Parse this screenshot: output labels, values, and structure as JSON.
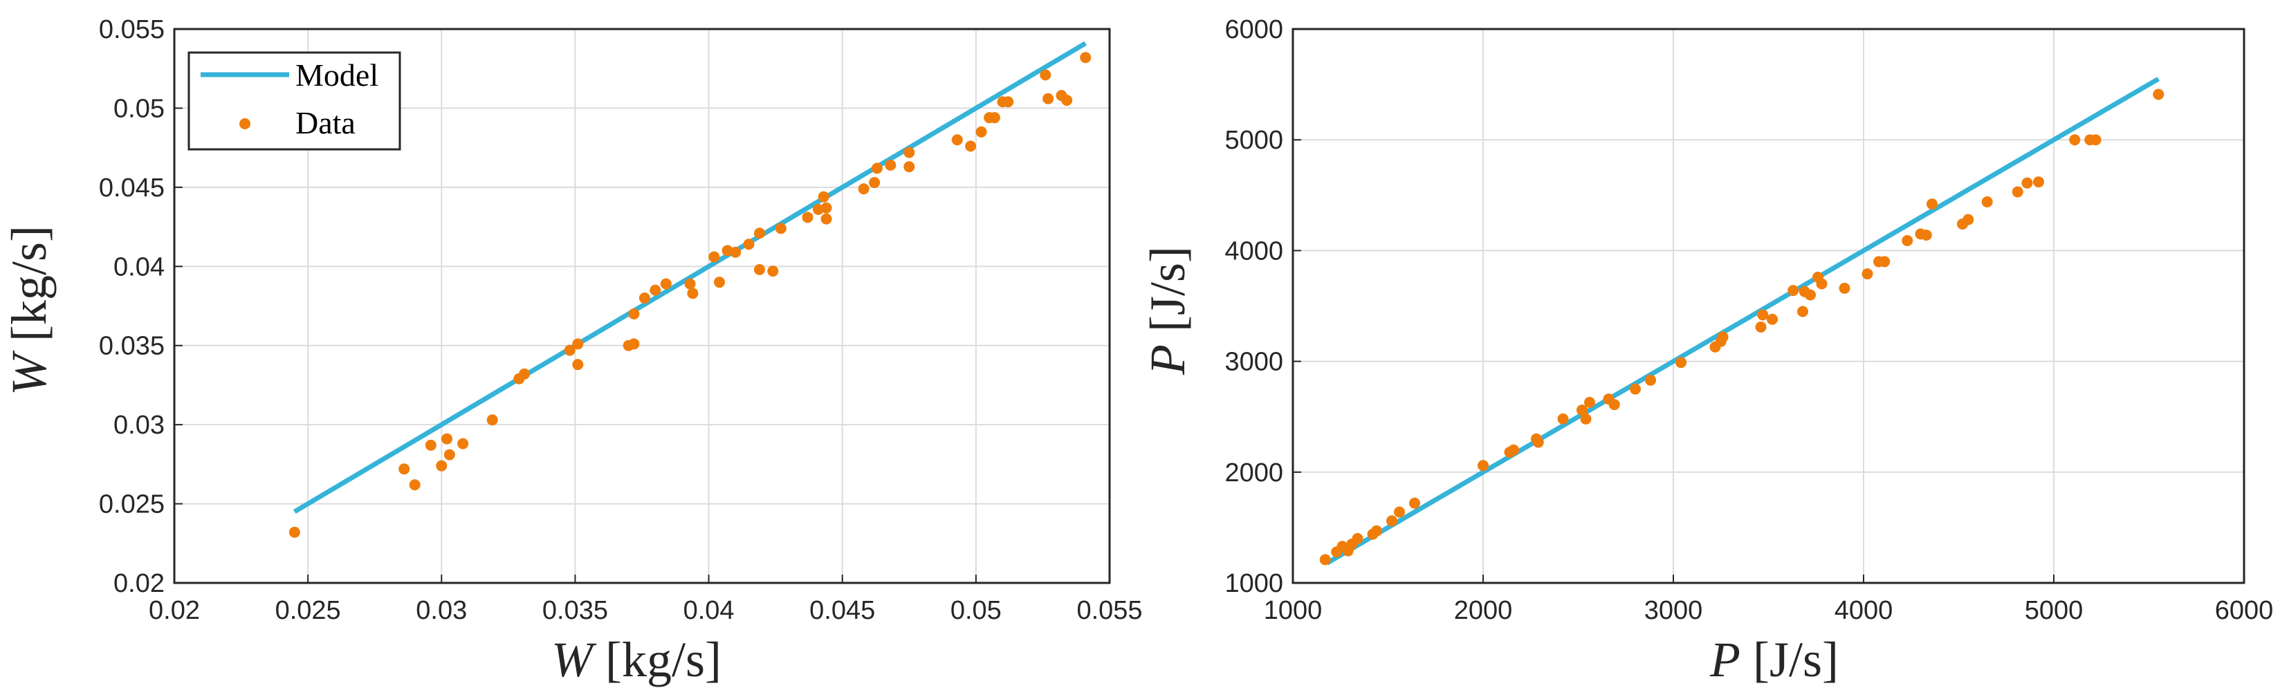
{
  "colors": {
    "model": "#36b3d9",
    "data": "#f07d0a",
    "axes": "#262626",
    "grid": "#dcdcdc"
  },
  "chart_data": [
    {
      "type": "scatter",
      "xlabel": {
        "symbol": "W",
        "unit": "[kg/s]"
      },
      "ylabel": {
        "symbol": "W",
        "unit": "[kg/s]"
      },
      "xlim": [
        0.02,
        0.055
      ],
      "ylim": [
        0.02,
        0.055
      ],
      "xticks": [
        "0.02",
        "0.025",
        "0.03",
        "0.035",
        "0.04",
        "0.045",
        "0.05",
        "0.055"
      ],
      "yticks": [
        "0.02",
        "0.025",
        "0.03",
        "0.035",
        "0.04",
        "0.045",
        "0.05",
        "0.055"
      ],
      "grid": true,
      "legend": {
        "placement": "top-left",
        "entries": [
          "Model",
          "Data"
        ]
      },
      "series": [
        {
          "name": "Model",
          "kind": "line",
          "x": [
            0.0245,
            0.0541
          ],
          "y": [
            0.0245,
            0.0541
          ]
        },
        {
          "name": "Data",
          "kind": "points",
          "x": [
            0.0245,
            0.0286,
            0.029,
            0.0296,
            0.03,
            0.0302,
            0.0303,
            0.0308,
            0.0319,
            0.0329,
            0.0331,
            0.0348,
            0.0351,
            0.0351,
            0.037,
            0.0372,
            0.0372,
            0.0376,
            0.038,
            0.0384,
            0.0393,
            0.0394,
            0.0402,
            0.0404,
            0.0407,
            0.041,
            0.0415,
            0.0419,
            0.0419,
            0.0424,
            0.0427,
            0.0437,
            0.0441,
            0.0443,
            0.0444,
            0.0444,
            0.0458,
            0.0462,
            0.0463,
            0.0468,
            0.0475,
            0.0475,
            0.0493,
            0.0498,
            0.0502,
            0.0505,
            0.0507,
            0.051,
            0.0512,
            0.0526,
            0.0527,
            0.0532,
            0.0534,
            0.0541
          ],
          "y": [
            0.0232,
            0.0272,
            0.0262,
            0.0287,
            0.0274,
            0.0291,
            0.0281,
            0.0288,
            0.0303,
            0.0329,
            0.0332,
            0.0347,
            0.0351,
            0.0338,
            0.035,
            0.0351,
            0.037,
            0.038,
            0.0385,
            0.0389,
            0.0389,
            0.0383,
            0.0406,
            0.039,
            0.041,
            0.0409,
            0.0414,
            0.0421,
            0.0398,
            0.0397,
            0.0424,
            0.0431,
            0.0436,
            0.0444,
            0.0437,
            0.043,
            0.0449,
            0.0453,
            0.0462,
            0.0464,
            0.0472,
            0.0463,
            0.048,
            0.0476,
            0.0485,
            0.0494,
            0.0494,
            0.0504,
            0.0504,
            0.0521,
            0.0506,
            0.0508,
            0.0505,
            0.0532
          ]
        }
      ]
    },
    {
      "type": "scatter",
      "xlabel": {
        "symbol": "P",
        "unit": "[J/s]"
      },
      "ylabel": {
        "symbol": "P",
        "unit": "[J/s]"
      },
      "xlim": [
        1000,
        6000
      ],
      "ylim": [
        1000,
        6000
      ],
      "xticks": [
        "1000",
        "2000",
        "3000",
        "4000",
        "5000",
        "6000"
      ],
      "yticks": [
        "1000",
        "2000",
        "3000",
        "4000",
        "5000",
        "6000"
      ],
      "grid": true,
      "series": [
        {
          "name": "Model",
          "kind": "line",
          "x": [
            1180,
            5550
          ],
          "y": [
            1180,
            5550
          ]
        },
        {
          "name": "Data",
          "kind": "points",
          "x": [
            1170,
            1230,
            1260,
            1290,
            1310,
            1340,
            1420,
            1440,
            1520,
            1560,
            1640,
            2000,
            2140,
            2160,
            2280,
            2290,
            2420,
            2520,
            2540,
            2560,
            2660,
            2690,
            2800,
            2880,
            3040,
            3220,
            3250,
            3260,
            3460,
            3470,
            3520,
            3630,
            3680,
            3690,
            3720,
            3760,
            3780,
            3900,
            4020,
            4080,
            4110,
            4230,
            4300,
            4330,
            4360,
            4520,
            4550,
            4650,
            4810,
            4860,
            4920,
            5110,
            5190,
            5220,
            5550
          ],
          "y": [
            1210,
            1280,
            1330,
            1290,
            1350,
            1400,
            1440,
            1470,
            1560,
            1640,
            1720,
            2060,
            2180,
            2200,
            2300,
            2270,
            2480,
            2560,
            2480,
            2630,
            2660,
            2610,
            2750,
            2830,
            2990,
            3130,
            3180,
            3220,
            3310,
            3420,
            3380,
            3640,
            3450,
            3630,
            3600,
            3760,
            3700,
            3660,
            3790,
            3900,
            3900,
            4090,
            4150,
            4140,
            4420,
            4240,
            4280,
            4440,
            4530,
            4610,
            4620,
            5000,
            5000,
            5000,
            5410
          ]
        }
      ]
    }
  ]
}
